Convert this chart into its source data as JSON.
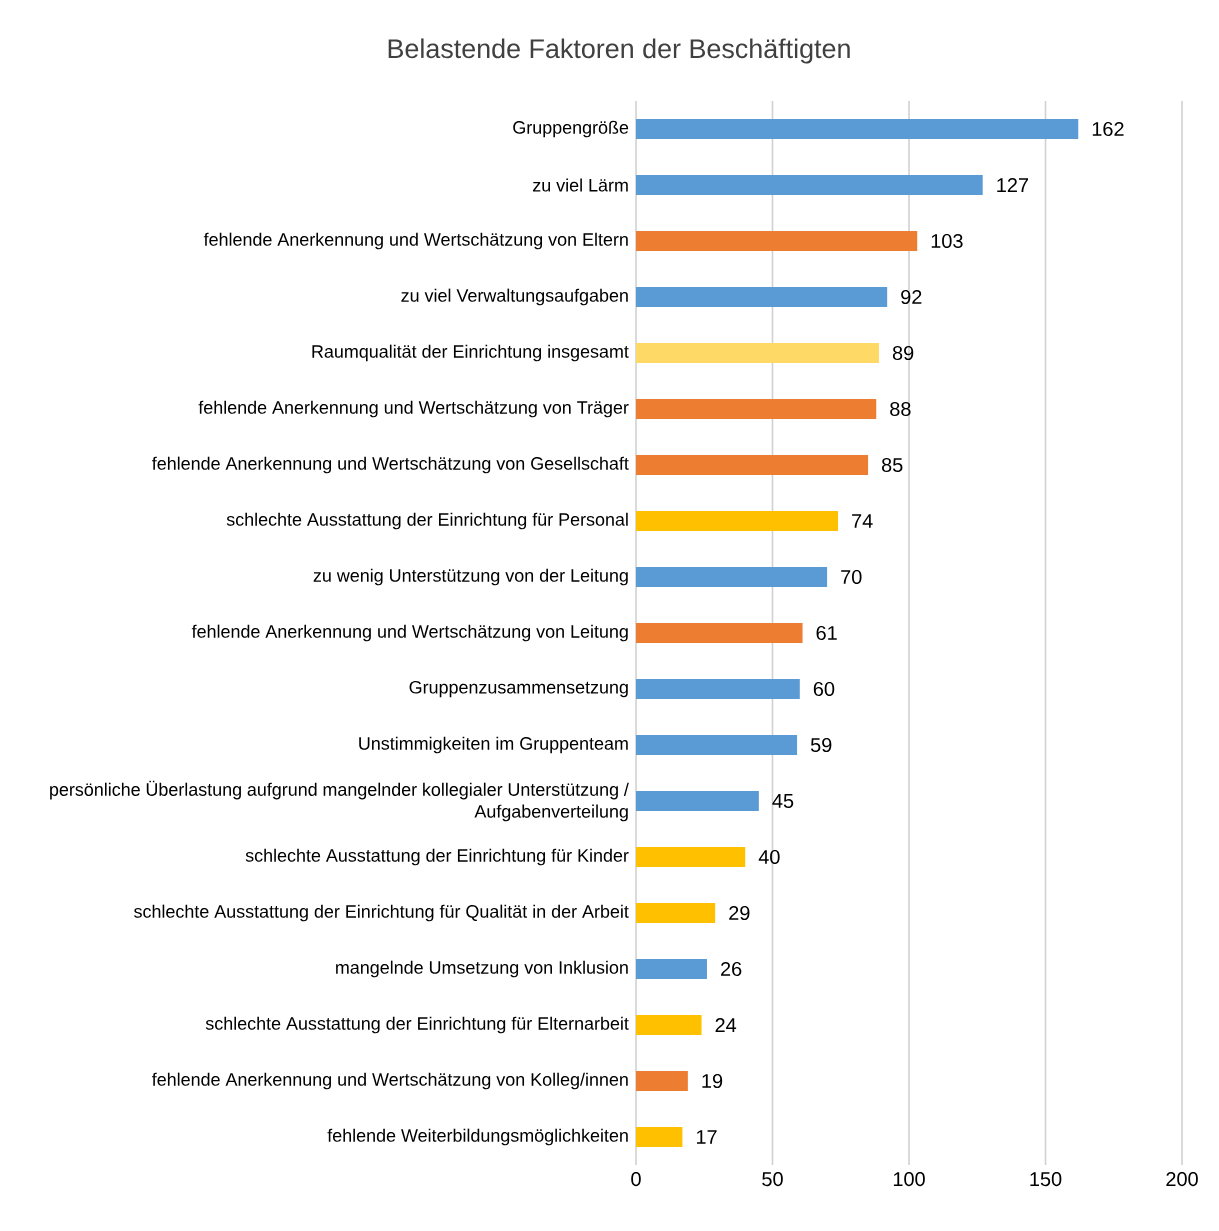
{
  "chart_data": {
    "type": "bar",
    "orientation": "horizontal",
    "title": "Belastende Faktoren der Beschäftigten",
    "categories": [
      "Gruppengröße",
      "zu viel Lärm",
      "fehlende Anerkennung und Wertschätzung von Eltern",
      "zu viel Verwaltungsaufgaben",
      "Raumqualität der Einrichtung insgesamt",
      "fehlende Anerkennung und Wertschätzung von Träger",
      "fehlende Anerkennung und Wertschätzung von Gesellschaft",
      "schlechte Ausstattung der Einrichtung für Personal",
      "zu wenig Unterstützung von der Leitung",
      "fehlende Anerkennung und Wertschätzung von Leitung",
      "Gruppenzusammensetzung",
      "Unstimmigkeiten im Gruppenteam",
      "persönliche Überlastung aufgrund mangelnder kollegialer Unterstützung / Aufgabenverteilung",
      "schlechte Ausstattung der Einrichtung für Kinder",
      "schlechte Ausstattung der Einrichtung für Qualität in der Arbeit",
      "mangelnde Umsetzung von Inklusion",
      "schlechte Ausstattung der Einrichtung für Elternarbeit",
      "fehlende Anerkennung und Wertschätzung von Kolleg/innen",
      "fehlende Weiterbildungsmöglichkeiten"
    ],
    "values": [
      162,
      127,
      103,
      92,
      89,
      88,
      85,
      74,
      70,
      61,
      60,
      59,
      45,
      40,
      29,
      26,
      24,
      19,
      17
    ],
    "colors": [
      "#5b9bd5",
      "#5b9bd5",
      "#ed7d31",
      "#5b9bd5",
      "#ffd966",
      "#ed7d31",
      "#ed7d31",
      "#ffc000",
      "#5b9bd5",
      "#ed7d31",
      "#5b9bd5",
      "#5b9bd5",
      "#5b9bd5",
      "#ffc000",
      "#ffc000",
      "#5b9bd5",
      "#ffc000",
      "#ed7d31",
      "#ffc000"
    ],
    "xlim": [
      0,
      200
    ],
    "xticks": [
      0,
      50,
      100,
      150,
      200
    ],
    "grid": "x",
    "data_labels": true
  }
}
